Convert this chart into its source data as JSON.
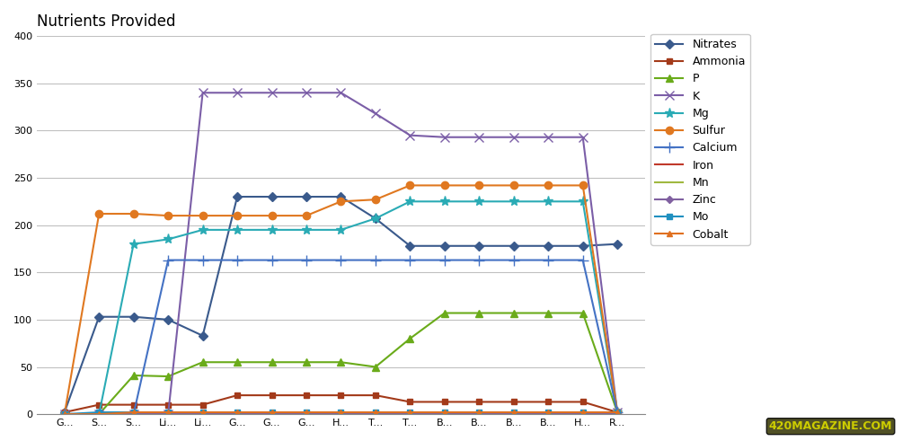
{
  "title": "Nutrients Provided",
  "categories": [
    "G...",
    "S...",
    "S...",
    "Li...",
    "Li...",
    "G...",
    "G...",
    "G...",
    "H...",
    "T...",
    "T...",
    "B...",
    "B...",
    "B...",
    "B...",
    "H...",
    "R..."
  ],
  "series_order": [
    "Nitrates",
    "Ammonia",
    "P",
    "K",
    "Mg",
    "Sulfur",
    "Calcium",
    "Iron",
    "Mn",
    "Zinc",
    "Mo",
    "Cobalt"
  ],
  "series": {
    "Nitrates": {
      "color": "#3a5a8c",
      "marker": "D",
      "ms": 5,
      "lw": 1.5,
      "values": [
        2,
        103,
        103,
        100,
        83,
        230,
        230,
        230,
        230,
        207,
        178,
        178,
        178,
        178,
        178,
        178,
        180
      ]
    },
    "Ammonia": {
      "color": "#a33a1a",
      "marker": "s",
      "ms": 5,
      "lw": 1.5,
      "values": [
        2,
        10,
        10,
        10,
        10,
        20,
        20,
        20,
        20,
        20,
        13,
        13,
        13,
        13,
        13,
        13,
        2
      ]
    },
    "P": {
      "color": "#6aab1a",
      "marker": "^",
      "ms": 6,
      "lw": 1.5,
      "values": [
        0,
        0,
        41,
        40,
        55,
        55,
        55,
        55,
        55,
        50,
        80,
        107,
        107,
        107,
        107,
        107,
        2
      ]
    },
    "K": {
      "color": "#7b5ea7",
      "marker": "x",
      "ms": 7,
      "lw": 1.5,
      "values": [
        0,
        0,
        0,
        0,
        340,
        340,
        340,
        340,
        340,
        318,
        295,
        293,
        293,
        293,
        293,
        293,
        2
      ]
    },
    "Mg": {
      "color": "#2aabb5",
      "marker": "*",
      "ms": 8,
      "lw": 1.5,
      "values": [
        0,
        0,
        180,
        185,
        195,
        195,
        195,
        195,
        195,
        207,
        225,
        225,
        225,
        225,
        225,
        225,
        2
      ]
    },
    "Sulfur": {
      "color": "#e07820",
      "marker": "o",
      "ms": 6,
      "lw": 1.5,
      "values": [
        0,
        212,
        212,
        210,
        210,
        210,
        210,
        210,
        225,
        227,
        242,
        242,
        242,
        242,
        242,
        242,
        2
      ]
    },
    "Calcium": {
      "color": "#4472c4",
      "marker": "+",
      "ms": 8,
      "lw": 1.5,
      "values": [
        0,
        0,
        0,
        163,
        163,
        163,
        163,
        163,
        163,
        163,
        163,
        163,
        163,
        163,
        163,
        163,
        2
      ]
    },
    "Iron": {
      "color": "#c0392b",
      "marker": "none",
      "ms": 4,
      "lw": 1.5,
      "values": [
        0,
        0,
        0,
        0,
        0,
        0,
        0,
        0,
        0,
        0,
        0,
        0,
        0,
        0,
        0,
        0,
        0
      ]
    },
    "Mn": {
      "color": "#a0b840",
      "marker": "none",
      "ms": 4,
      "lw": 1.5,
      "values": [
        0,
        0,
        0,
        0,
        0,
        0,
        0,
        0,
        0,
        0,
        0,
        0,
        0,
        0,
        0,
        0,
        0
      ]
    },
    "Zinc": {
      "color": "#8060a0",
      "marker": "D",
      "ms": 4,
      "lw": 1.5,
      "values": [
        0,
        0,
        0,
        0,
        0,
        0,
        0,
        0,
        0,
        0,
        0,
        0,
        0,
        0,
        0,
        0,
        0
      ]
    },
    "Mo": {
      "color": "#2090c0",
      "marker": "s",
      "ms": 4,
      "lw": 1.5,
      "values": [
        0,
        2,
        2,
        2,
        2,
        2,
        2,
        2,
        2,
        2,
        2,
        2,
        2,
        2,
        2,
        2,
        2
      ]
    },
    "Cobalt": {
      "color": "#e07020",
      "marker": "^",
      "ms": 4,
      "lw": 1.5,
      "values": [
        0,
        0,
        2,
        2,
        2,
        2,
        2,
        2,
        2,
        2,
        2,
        2,
        2,
        2,
        2,
        2,
        2
      ]
    }
  },
  "ylim": [
    0,
    400
  ],
  "yticks": [
    0,
    50,
    100,
    150,
    200,
    250,
    300,
    350,
    400
  ],
  "background_color": "#ffffff",
  "plot_bg_color": "#ffffff",
  "grid_color": "#c0c0c0",
  "title_fontsize": 12,
  "tick_fontsize": 8,
  "legend_fontsize": 9,
  "watermark": "420MAGAZINE.COM"
}
